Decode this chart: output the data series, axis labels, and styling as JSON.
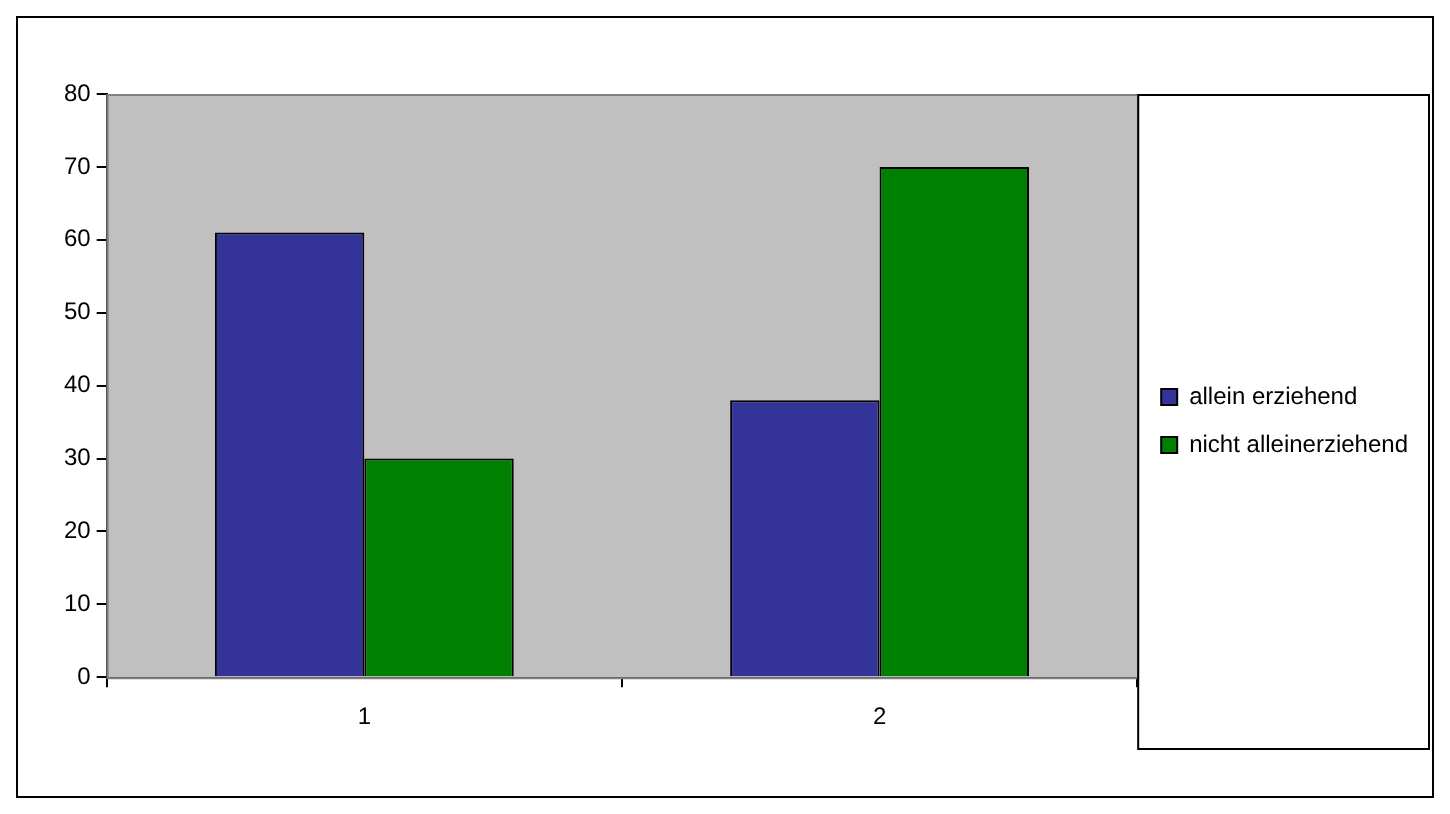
{
  "chart_data": {
    "type": "bar",
    "categories": [
      "1",
      "2"
    ],
    "series": [
      {
        "name": "allein erziehend",
        "color": "#333399",
        "values": [
          61,
          38
        ]
      },
      {
        "name": "nicht alleinerziehend",
        "color": "#008000",
        "values": [
          30,
          70
        ]
      }
    ],
    "ylim": [
      0,
      80
    ],
    "yticks": [
      0,
      10,
      20,
      30,
      40,
      50,
      60,
      70,
      80
    ],
    "grid": false,
    "legend": "right"
  }
}
